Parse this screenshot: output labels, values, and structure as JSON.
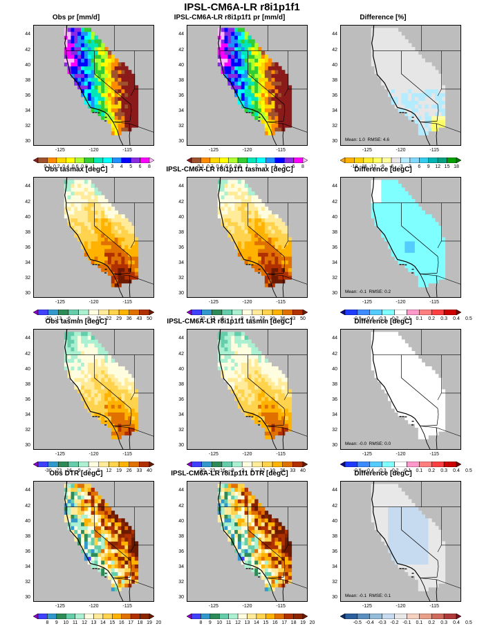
{
  "figure": {
    "title": "IPSL-CM6A-LR r8i1p1f1"
  },
  "axes": {
    "y_ticks": [
      "44",
      "42",
      "40",
      "38",
      "36",
      "34",
      "32",
      "30"
    ],
    "x_ticks": [
      "-125",
      "-120",
      "-115"
    ]
  },
  "colors": {
    "ocean_gray": "#bdbdbd",
    "outline": "#000000"
  },
  "rows": [
    {
      "name": "pr",
      "obs_title": "Obs pr [mm/d]",
      "model_title": "IPSL-CM6A-LR r8i1p1f1 pr [mm/d]",
      "diff_title": "Difference [%]",
      "diff_stats": "Mean: 1.0  RMSE: 4.6",
      "field_colorbar": {
        "labels": [
          "0.1",
          "0.2",
          "0.4",
          "0.6",
          "0.8",
          "1",
          "2",
          "3",
          "4",
          "5",
          "6",
          "8"
        ],
        "colors": [
          "#8b1a1a",
          "#a0522d",
          "#ff8c00",
          "#ffd700",
          "#ffff00",
          "#adff2f",
          "#32cd32",
          "#00e6b8",
          "#00ffff",
          "#1e90ff",
          "#0000ff",
          "#8a2be2",
          "#ff00ff",
          "#ffb6ff"
        ]
      },
      "diff_colorbar": {
        "labels": [
          "-18",
          "-15",
          "-12",
          "-9",
          "-6",
          "-3",
          "3",
          "6",
          "9",
          "12",
          "15",
          "18"
        ],
        "colors": [
          "#ffa500",
          "#ffb300",
          "#ffd000",
          "#ffee33",
          "#ffff66",
          "#ffffa0",
          "#e6e6e6",
          "#b3ecff",
          "#80d8ff",
          "#33ccee",
          "#00b3b3",
          "#00a080",
          "#00a000",
          "#007a00"
        ]
      }
    },
    {
      "name": "tasmax",
      "obs_title": "Obs tasmax [degC]",
      "model_title": "IPSL-CM6A-LR r8i1p1f1 tasmax [degC]",
      "diff_title": "Difference [degC]",
      "diff_stats": "Mean: -0.1  RMSE: 0.2",
      "field_colorbar": {
        "labels": [
          "-20",
          "-13",
          "-6",
          "1",
          "8",
          "15",
          "22",
          "29",
          "36",
          "43",
          "50"
        ],
        "colors": [
          "#8b00c8",
          "#4040ff",
          "#3399cc",
          "#2e8b57",
          "#66cdaa",
          "#aaf0d1",
          "#fffde0",
          "#ffeb99",
          "#ffd34d",
          "#ffb300",
          "#e07000",
          "#b03000",
          "#6b1a00"
        ]
      },
      "diff_colorbar": {
        "labels": [
          "-0.5",
          "-0.4",
          "-0.3",
          "-0.2",
          "-0.1",
          "0.1",
          "0.2",
          "0.3",
          "0.4",
          "0.5"
        ],
        "colors": [
          "#0a0a8c",
          "#1e3cff",
          "#3c8cff",
          "#55ccff",
          "#7fffff",
          "#ffffff",
          "#ff99cc",
          "#ff7f7f",
          "#ff4040",
          "#cc0000",
          "#7a0000"
        ]
      }
    },
    {
      "name": "tasmin",
      "obs_title": "Obs tasmin [degC]",
      "model_title": "IPSL-CM6A-LR r8i1p1f1 tasmin [degC]",
      "diff_title": "Difference [degC]",
      "diff_stats": "Mean: -0.0  RMSE: 0.0",
      "field_colorbar": {
        "labels": [
          "-30",
          "-23",
          "-16",
          "-9",
          "-2",
          "5",
          "12",
          "19",
          "26",
          "33",
          "40"
        ],
        "colors": [
          "#8b00c8",
          "#4040ff",
          "#3399cc",
          "#2e8b57",
          "#66cdaa",
          "#aaf0d1",
          "#fffde0",
          "#ffeb99",
          "#ffd34d",
          "#ffb300",
          "#e07000",
          "#b03000",
          "#6b1a00"
        ]
      },
      "diff_colorbar": {
        "labels": [
          "-0.5",
          "-0.4",
          "-0.3",
          "-0.2",
          "-0.1",
          "0.1",
          "0.2",
          "0.3",
          "0.4",
          "0.5"
        ],
        "colors": [
          "#0a0a8c",
          "#1e3cff",
          "#3c8cff",
          "#55ccff",
          "#7fffff",
          "#ffffff",
          "#ff99cc",
          "#ff7f7f",
          "#ff4040",
          "#cc0000",
          "#7a0000"
        ]
      }
    },
    {
      "name": "DTR",
      "obs_title": "Obs DTR [degC]",
      "model_title": "IPSL-CM6A-LR r8i1p1f1 DTR [degC]",
      "diff_title": "Difference [degC]",
      "diff_stats": "Mean: -0.1  RMSE: 0.1",
      "field_colorbar": {
        "labels": [
          "8",
          "9",
          "10",
          "11",
          "12",
          "13",
          "14",
          "15",
          "16",
          "17",
          "18",
          "19",
          "20"
        ],
        "colors": [
          "#8b00c8",
          "#4040ff",
          "#3399cc",
          "#2e8b57",
          "#66cdaa",
          "#aaf0d1",
          "#fffde0",
          "#ffeb99",
          "#ffd34d",
          "#ffb300",
          "#e07000",
          "#b03000",
          "#8b2500",
          "#6b1a00"
        ]
      },
      "diff_colorbar": {
        "labels": [
          "-0.5",
          "-0.4",
          "-0.3",
          "-0.2",
          "-0.1",
          "0.1",
          "0.2",
          "0.3",
          "0.4",
          "0.5"
        ],
        "colors": [
          "#08306b",
          "#2c5f9e",
          "#5a8fc0",
          "#92bcd8",
          "#c6dbef",
          "#e8e8e8",
          "#f5d0c0",
          "#e8a08a",
          "#d06a5a",
          "#b03a3a",
          "#7a1020"
        ]
      }
    }
  ]
}
